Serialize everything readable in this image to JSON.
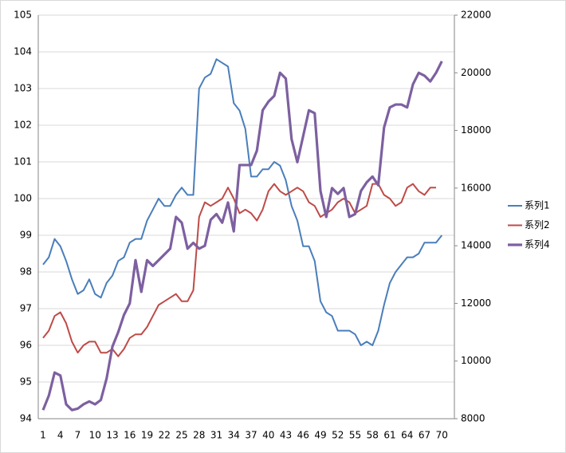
{
  "chart_data": {
    "type": "line",
    "categories": [
      1,
      null,
      null,
      4,
      null,
      null,
      7,
      null,
      null,
      10,
      null,
      null,
      13,
      null,
      null,
      16,
      null,
      null,
      19,
      null,
      null,
      22,
      null,
      null,
      25,
      null,
      null,
      28,
      null,
      null,
      31,
      null,
      null,
      34,
      null,
      null,
      37,
      null,
      null,
      40,
      null,
      null,
      43,
      null,
      null,
      46,
      null,
      null,
      49,
      null,
      null,
      52,
      null,
      null,
      55,
      null,
      null,
      58,
      null,
      null,
      61,
      null,
      null,
      64,
      null,
      null,
      67,
      null,
      null,
      70
    ],
    "ylim": [
      94,
      105
    ],
    "yticks": [
      94,
      95,
      96,
      97,
      98,
      99,
      100,
      101,
      102,
      103,
      104,
      105
    ],
    "y2lim": [
      8000,
      22000
    ],
    "y2ticks": [
      8000,
      10000,
      12000,
      14000,
      16000,
      18000,
      20000,
      22000
    ],
    "grid": true,
    "legend": "right",
    "series": [
      {
        "name": "系列1",
        "color": "#4a7ebb",
        "values": [
          98.2,
          98.4,
          98.9,
          98.7,
          98.3,
          97.8,
          97.4,
          97.5,
          97.8,
          97.4,
          97.3,
          97.7,
          97.9,
          98.3,
          98.4,
          98.8,
          98.9,
          98.9,
          99.4,
          99.7,
          100.0,
          99.8,
          99.8,
          100.1,
          100.3,
          100.1,
          100.1,
          103.0,
          103.3,
          103.4,
          103.8,
          103.7,
          103.6,
          102.6,
          102.4,
          101.9,
          100.6,
          100.6,
          100.8,
          100.8,
          101.0,
          100.9,
          100.5,
          99.8,
          99.4,
          98.7,
          98.7,
          98.3,
          97.2,
          96.9,
          96.8,
          96.4,
          96.4,
          96.4,
          96.3,
          96.0,
          96.1,
          96.0,
          96.4,
          97.1,
          97.7,
          98.0,
          98.2,
          98.4,
          98.4,
          98.5,
          98.8,
          98.8,
          98.8,
          99.0
        ]
      },
      {
        "name": "系列2",
        "color": "#be4b48",
        "values": [
          96.2,
          96.4,
          96.8,
          96.9,
          96.6,
          96.1,
          95.8,
          96.0,
          96.1,
          96.1,
          95.8,
          95.8,
          95.9,
          95.7,
          95.9,
          96.2,
          96.3,
          96.3,
          96.5,
          96.8,
          97.1,
          97.2,
          97.3,
          97.4,
          97.2,
          97.2,
          97.5,
          99.5,
          99.9,
          99.8,
          99.9,
          100.0,
          100.3,
          100.0,
          99.6,
          99.7,
          99.6,
          99.4,
          99.7,
          100.2,
          100.4,
          100.2,
          100.1,
          100.2,
          100.3,
          100.2,
          99.9,
          99.8,
          99.5,
          99.6,
          99.7,
          99.9,
          100.0,
          99.9,
          99.6,
          99.7,
          99.8,
          100.4,
          100.4,
          100.1,
          100.0,
          99.8,
          99.9,
          100.3,
          100.4,
          100.2,
          100.1,
          100.3,
          100.3,
          null
        ]
      },
      {
        "name": "系列4",
        "color": "#7d60a0",
        "axis": "y2",
        "values": [
          8300,
          8800,
          9600,
          9500,
          8500,
          8300,
          8350,
          8500,
          8600,
          8500,
          8650,
          9400,
          10500,
          11000,
          11600,
          12000,
          13500,
          12400,
          13500,
          13300,
          13500,
          13700,
          13900,
          15000,
          14800,
          13900,
          14100,
          13900,
          14000,
          14900,
          15100,
          14800,
          15500,
          14500,
          16800,
          16800,
          16800,
          17300,
          18700,
          19000,
          19200,
          20000,
          19800,
          17700,
          16900,
          17800,
          18700,
          18600,
          15900,
          15000,
          16000,
          15800,
          16000,
          15000,
          15100,
          15900,
          16200,
          16400,
          16100,
          18100,
          18800,
          18900,
          18900,
          18800,
          19600,
          20000,
          19900,
          19700,
          20000,
          20400
        ]
      }
    ]
  }
}
